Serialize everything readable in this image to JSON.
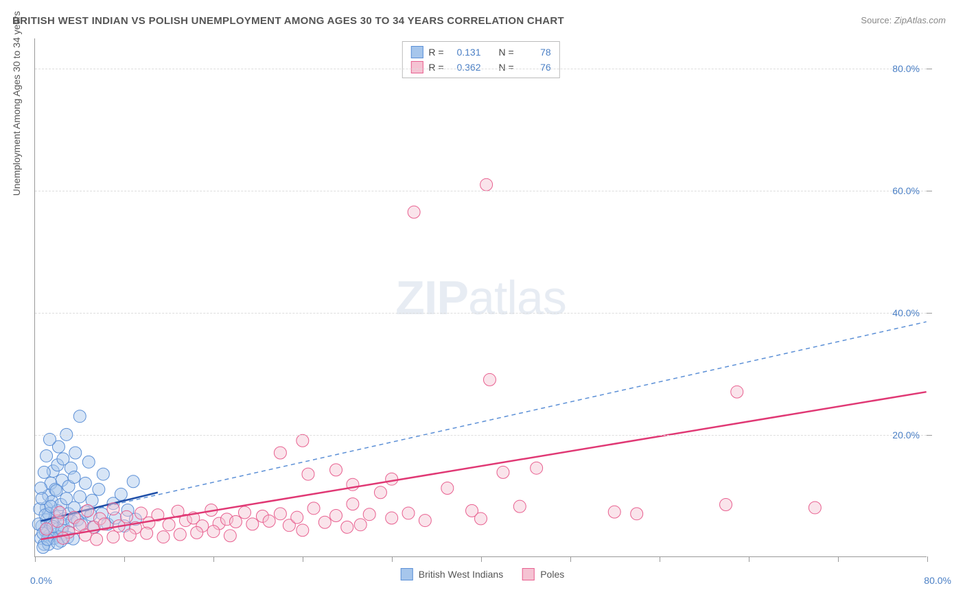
{
  "title": "BRITISH WEST INDIAN VS POLISH UNEMPLOYMENT AMONG AGES 30 TO 34 YEARS CORRELATION CHART",
  "source_label": "Source:",
  "source": "ZipAtlas.com",
  "watermark_bold": "ZIP",
  "watermark_light": "atlas",
  "chart": {
    "type": "scatter",
    "xlim": [
      0,
      80
    ],
    "ylim": [
      0,
      85
    ],
    "x_axis_min_label": "0.0%",
    "x_axis_max_label": "80.0%",
    "y_tick_labels": [
      "20.0%",
      "40.0%",
      "60.0%",
      "80.0%"
    ],
    "y_tick_values": [
      20,
      40,
      60,
      80
    ],
    "x_tick_values": [
      0,
      8,
      16,
      24,
      32,
      40,
      48,
      56,
      64,
      72,
      80
    ],
    "y_axis_title": "Unemployment Among Ages 30 to 34 years",
    "background_color": "#ffffff",
    "grid_color": "#dddddd",
    "axis_color": "#999999",
    "label_color": "#4a7fc5",
    "title_color": "#555555",
    "title_fontsize": 15,
    "label_fontsize": 14,
    "marker_radius": 9,
    "marker_opacity": 0.45,
    "series": [
      {
        "name": "British West Indians",
        "color_fill": "#a6c6ec",
        "color_stroke": "#5b8fd6",
        "r_label": "R =",
        "r_value": "0.131",
        "n_label": "N =",
        "n_value": "78",
        "trend_solid": {
          "x1": 0.5,
          "y1": 5.8,
          "x2": 11,
          "y2": 10.5,
          "color": "#1f4fa8",
          "width": 2.5
        },
        "trend_dashed": {
          "x1": 0.5,
          "y1": 5.8,
          "x2": 80,
          "y2": 38.5,
          "color": "#5b8fd6",
          "width": 1.5,
          "dash": "6,5"
        },
        "points": [
          [
            0.5,
            3
          ],
          [
            0.6,
            5
          ],
          [
            0.8,
            2
          ],
          [
            1,
            6
          ],
          [
            1,
            8
          ],
          [
            1.1,
            4
          ],
          [
            1.2,
            10
          ],
          [
            1.2,
            7
          ],
          [
            1.3,
            3.5
          ],
          [
            1.4,
            12
          ],
          [
            1.5,
            5.5
          ],
          [
            1.5,
            9
          ],
          [
            1.6,
            14
          ],
          [
            1.8,
            6.5
          ],
          [
            1.8,
            11
          ],
          [
            2,
            4.5
          ],
          [
            2,
            7.5
          ],
          [
            2,
            15
          ],
          [
            2.1,
            18
          ],
          [
            2.2,
            3.2
          ],
          [
            2.3,
            8.5
          ],
          [
            2.4,
            12.5
          ],
          [
            2.5,
            5
          ],
          [
            2.5,
            16
          ],
          [
            2.6,
            6.2
          ],
          [
            2.8,
            9.5
          ],
          [
            2.8,
            20
          ],
          [
            3,
            4
          ],
          [
            3,
            7
          ],
          [
            3,
            11.5
          ],
          [
            3.2,
            14.5
          ],
          [
            3.3,
            5.8
          ],
          [
            3.5,
            8
          ],
          [
            3.5,
            13
          ],
          [
            3.6,
            17
          ],
          [
            3.8,
            6
          ],
          [
            4,
            9.8
          ],
          [
            4,
            23
          ],
          [
            4.2,
            5.2
          ],
          [
            4.5,
            7.3
          ],
          [
            4.5,
            12
          ],
          [
            4.8,
            15.5
          ],
          [
            5,
            6.8
          ],
          [
            5.1,
            9.2
          ],
          [
            5.3,
            4.8
          ],
          [
            5.7,
            11
          ],
          [
            6,
            7
          ],
          [
            6.1,
            13.5
          ],
          [
            6.5,
            5.3
          ],
          [
            7,
            8.7
          ],
          [
            7.2,
            6.3
          ],
          [
            7.7,
            10.2
          ],
          [
            8,
            5
          ],
          [
            8.3,
            7.6
          ],
          [
            8.8,
            12.3
          ],
          [
            9,
            6.1
          ],
          [
            1.2,
            2
          ],
          [
            1.7,
            3
          ],
          [
            2.3,
            2.5
          ],
          [
            0.7,
            1.5
          ],
          [
            0.9,
            4.2
          ],
          [
            1.1,
            2.8
          ],
          [
            1.6,
            4.9
          ],
          [
            2,
            2.2
          ],
          [
            2.4,
            4.3
          ],
          [
            2.9,
            3.1
          ],
          [
            3.4,
            2.9
          ],
          [
            0.4,
            7.8
          ],
          [
            0.5,
            11.2
          ],
          [
            0.8,
            13.8
          ],
          [
            1,
            16.5
          ],
          [
            1.3,
            19.2
          ],
          [
            0.6,
            9.5
          ],
          [
            0.9,
            6.8
          ],
          [
            1.4,
            8.2
          ],
          [
            1.9,
            10.8
          ],
          [
            0.3,
            5.3
          ],
          [
            0.7,
            3.8
          ]
        ]
      },
      {
        "name": "Poles",
        "color_fill": "#f5c3d3",
        "color_stroke": "#e85f8f",
        "r_label": "R =",
        "r_value": "0.362",
        "n_label": "N =",
        "n_value": "76",
        "trend_solid": {
          "x1": 0.5,
          "y1": 2.8,
          "x2": 80,
          "y2": 27,
          "color": "#e03874",
          "width": 2.5
        },
        "trend_dashed": null,
        "points": [
          [
            1,
            4.5
          ],
          [
            2,
            5.8
          ],
          [
            2.2,
            7.2
          ],
          [
            3,
            4
          ],
          [
            3.5,
            6.4
          ],
          [
            4,
            5.1
          ],
          [
            4.7,
            7.5
          ],
          [
            5.2,
            4.8
          ],
          [
            5.8,
            6.2
          ],
          [
            6.2,
            5.3
          ],
          [
            7,
            7.8
          ],
          [
            7.5,
            5
          ],
          [
            8.2,
            6.5
          ],
          [
            9,
            4.7
          ],
          [
            9.5,
            7.1
          ],
          [
            10.2,
            5.5
          ],
          [
            11,
            6.8
          ],
          [
            12,
            5.2
          ],
          [
            12.8,
            7.4
          ],
          [
            13.5,
            5.9
          ],
          [
            14.2,
            6.3
          ],
          [
            15,
            5
          ],
          [
            15.8,
            7.6
          ],
          [
            16.5,
            5.4
          ],
          [
            17.2,
            6.1
          ],
          [
            18,
            5.7
          ],
          [
            18.8,
            7.2
          ],
          [
            19.5,
            5.3
          ],
          [
            20.4,
            6.6
          ],
          [
            21,
            5.8
          ],
          [
            22,
            7
          ],
          [
            22.8,
            5.1
          ],
          [
            23.5,
            6.4
          ],
          [
            24,
            4.3
          ],
          [
            25,
            7.9
          ],
          [
            26,
            5.6
          ],
          [
            27,
            6.7
          ],
          [
            28,
            4.8
          ],
          [
            28.5,
            8.6
          ],
          [
            29.2,
            5.2
          ],
          [
            30,
            6.9
          ],
          [
            22,
            17
          ],
          [
            24.5,
            13.5
          ],
          [
            27,
            14.2
          ],
          [
            28.5,
            11.8
          ],
          [
            31,
            10.5
          ],
          [
            32,
            6.3
          ],
          [
            24,
            19
          ],
          [
            32,
            12.7
          ],
          [
            33.5,
            7.1
          ],
          [
            35,
            5.9
          ],
          [
            37,
            11.2
          ],
          [
            34,
            56.5
          ],
          [
            39.2,
            7.5
          ],
          [
            40,
            6.2
          ],
          [
            40.5,
            61
          ],
          [
            42,
            13.8
          ],
          [
            43.5,
            8.2
          ],
          [
            45,
            14.5
          ],
          [
            52,
            7.3
          ],
          [
            40.8,
            29
          ],
          [
            54,
            7
          ],
          [
            63,
            27
          ],
          [
            62,
            8.5
          ],
          [
            70,
            8
          ],
          [
            4.5,
            3.5
          ],
          [
            7,
            3.2
          ],
          [
            10,
            3.8
          ],
          [
            13,
            3.6
          ],
          [
            16,
            4.1
          ],
          [
            2.5,
            3
          ],
          [
            5.5,
            2.8
          ],
          [
            8.5,
            3.5
          ],
          [
            11.5,
            3.2
          ],
          [
            14.5,
            3.9
          ],
          [
            17.5,
            3.4
          ]
        ]
      }
    ],
    "legend": [
      {
        "label": "British West Indians",
        "fill": "#a6c6ec",
        "stroke": "#5b8fd6"
      },
      {
        "label": "Poles",
        "fill": "#f5c3d3",
        "stroke": "#e85f8f"
      }
    ]
  }
}
